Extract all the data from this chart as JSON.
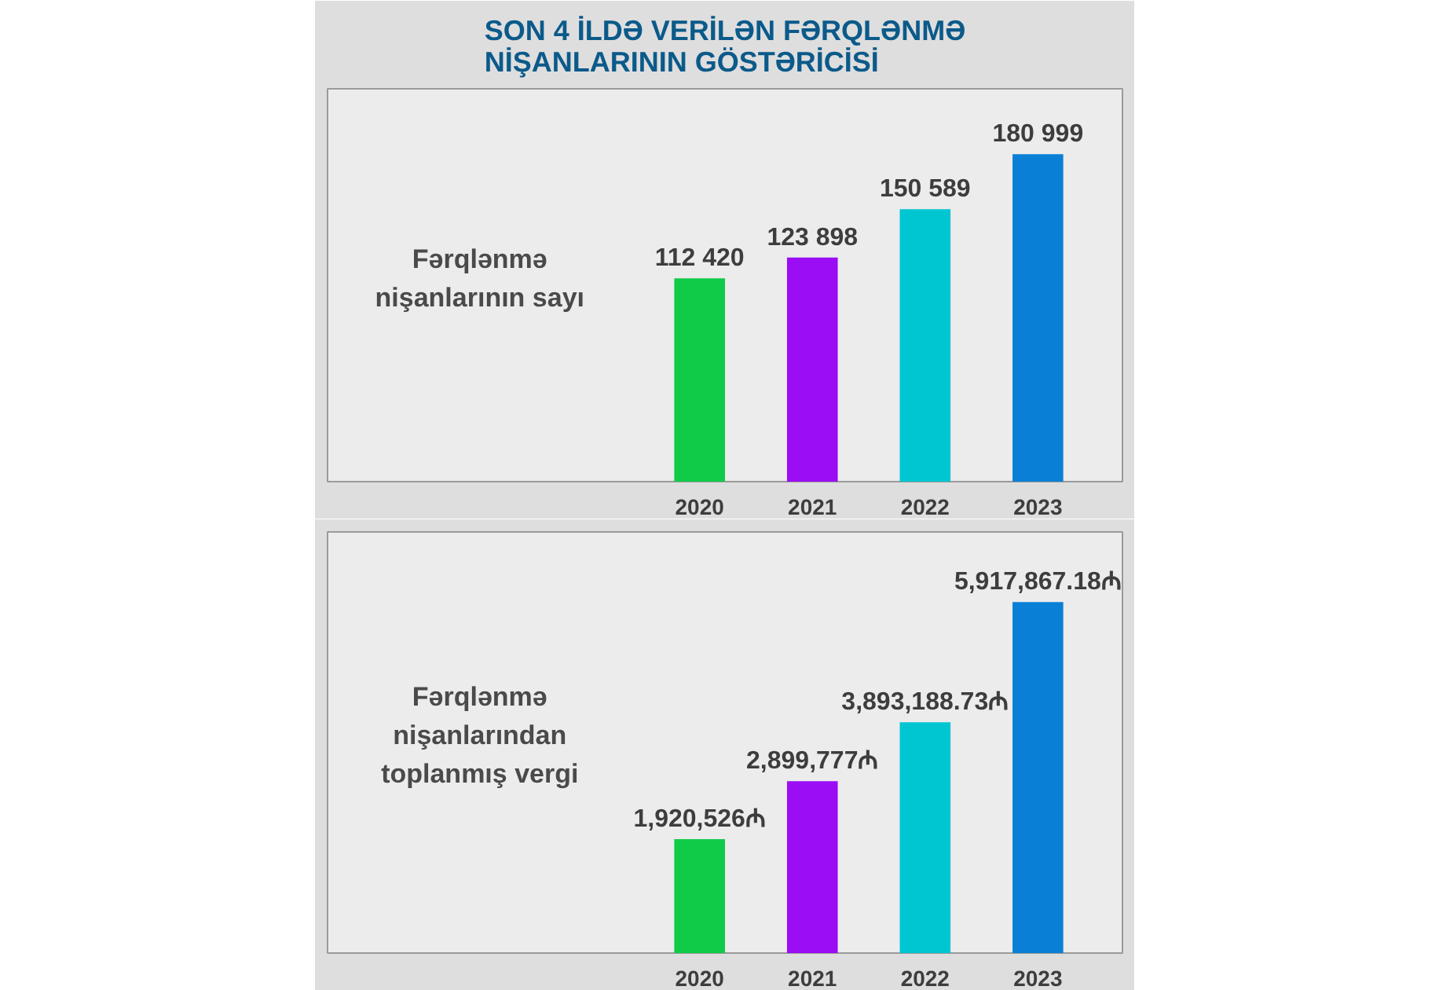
{
  "chart_data": [
    {
      "type": "bar",
      "title": "SON 4 İLDƏ VERİLƏN FƏRQLƏNMƏ NİŞANLARININ GÖSTƏRİCİSİ",
      "ylabel": "Fərqlənmə nişanlarının sayı",
      "categories": [
        "2020",
        "2021",
        "2022",
        "2023"
      ],
      "values": [
        112420,
        123898,
        150589,
        180999
      ],
      "colors": [
        "#0fcb48",
        "#9a0df5",
        "#00c6d2",
        "#0a7fd6"
      ],
      "value_labels": [
        "112 420",
        "123 898",
        "150 589",
        "180 999"
      ]
    },
    {
      "type": "bar",
      "ylabel": "Fərqlənmə nişanlarından toplanmış vergi",
      "categories": [
        "2020",
        "2021",
        "2022",
        "2023"
      ],
      "values": [
        1920526,
        2899777,
        3893188.73,
        5917867.18
      ],
      "colors": [
        "#0fcb48",
        "#9a0df5",
        "#00c6d2",
        "#0a7fd6"
      ],
      "value_labels": [
        "1,920,526₼",
        "2,899,777₼",
        "3,893,188.73₼",
        "5,917,867.18₼"
      ]
    }
  ]
}
